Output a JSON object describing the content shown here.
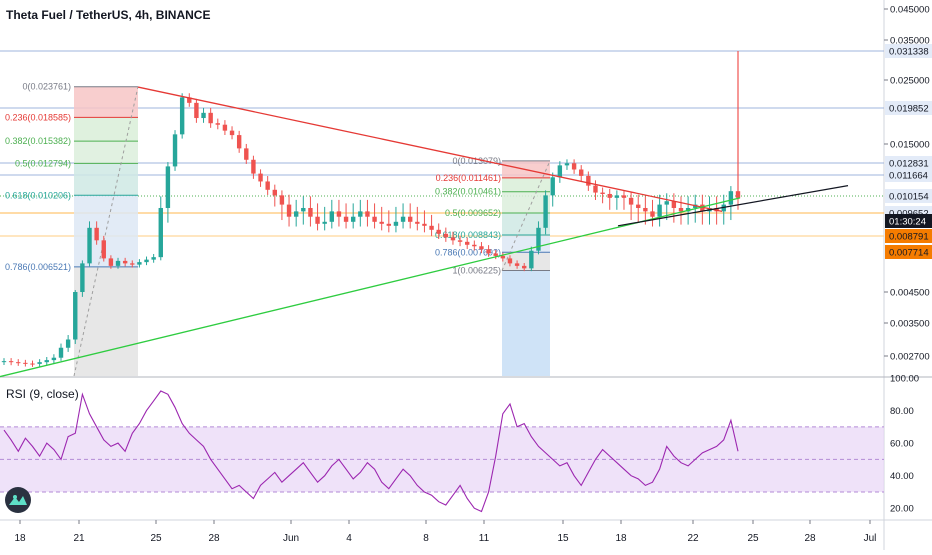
{
  "header": {
    "title": "Theta Fuel / TetherUS, 4h, BINANCE"
  },
  "colors": {
    "up": "#26a69a",
    "down": "#ef5350",
    "green_line": "#2ecc40",
    "red_line": "#e53935",
    "rsi_line": "#9c27b0",
    "rsi_band": "#e8d5f7",
    "fib_blue": "#4a79b5",
    "fib_green": "#4caf50",
    "fib_red": "#e53935",
    "price_tag_dark": "#131722",
    "price_tag_orange": "#f57c00"
  },
  "chart_data": [
    {
      "type": "line",
      "panel": "price",
      "x_ticks": [
        "18",
        "21",
        "25",
        "28",
        "Jun",
        "4",
        "8",
        "11",
        "15",
        "18",
        "22",
        "25",
        "28",
        "Jul"
      ],
      "y_ticks": [
        "0.045000",
        "0.035000",
        "0.025000",
        "0.015000",
        "0.004500",
        "0.003500",
        "0.002700"
      ],
      "y_tick_values": [
        0.045,
        0.035,
        0.025,
        0.015,
        0.0045,
        0.0035,
        0.0027
      ],
      "price_tags": [
        {
          "label": "0.031338",
          "value": 0.031338,
          "style": "light"
        },
        {
          "label": "0.019852",
          "value": 0.019852,
          "style": "light"
        },
        {
          "label": "0.012831",
          "value": 0.012831,
          "style": "light"
        },
        {
          "label": "0.011664",
          "value": 0.011664,
          "style": "light"
        },
        {
          "label": "0.010154",
          "value": 0.010154,
          "style": "light"
        },
        {
          "label": "0.009652",
          "value": 0.009652,
          "style": "light"
        },
        {
          "label": "0.009540",
          "value": 0.00954,
          "style": "dark",
          "text": "01:30:24"
        },
        {
          "label": "0.008791",
          "value": 0.008791,
          "style": "orange"
        },
        {
          "label": "0.007714",
          "value": 0.007714,
          "style": "orange"
        }
      ],
      "fib_left": [
        {
          "label": "0(0.023761)",
          "value": 0.023761,
          "color": "#787b86"
        },
        {
          "label": "0.236(0.018585)",
          "value": 0.018585,
          "color": "#e53935"
        },
        {
          "label": "0.382(0.015382)",
          "value": 0.015382,
          "color": "#4caf50"
        },
        {
          "label": "0.5(0.012794)",
          "value": 0.012794,
          "color": "#4caf50"
        },
        {
          "label": "0.618(0.010206)",
          "value": 0.010206,
          "color": "#26a69a"
        },
        {
          "label": "0.786(0.006521)",
          "value": 0.006521,
          "color": "#4a79b5"
        }
      ],
      "fib_right": [
        {
          "label": "0(0.013079)",
          "value": 0.013079,
          "color": "#787b86"
        },
        {
          "label": "0.236(0.011461)",
          "value": 0.011461,
          "color": "#e53935"
        },
        {
          "label": "0.382(0.010461)",
          "value": 0.010461,
          "color": "#4caf50"
        },
        {
          "label": "0.5(0.009652)",
          "value": 0.009652,
          "color": "#4caf50"
        },
        {
          "label": "0.618(0.008843)",
          "value": 0.008843,
          "color": "#26a69a"
        },
        {
          "label": "0.786(0.007692)",
          "value": 0.007692,
          "color": "#4a79b5"
        },
        {
          "label": "1(0.006225)",
          "value": 0.006225,
          "color": "#787b86"
        }
      ],
      "close_series": [
        0.00255,
        0.00252,
        0.0025,
        0.00248,
        0.00247,
        0.00252,
        0.00258,
        0.00265,
        0.0029,
        0.0031,
        0.0045,
        0.0068,
        0.0092,
        0.0085,
        0.0072,
        0.0066,
        0.007,
        0.0068,
        0.0067,
        0.0069,
        0.0071,
        0.0073,
        0.0098,
        0.0125,
        0.0163,
        0.0218,
        0.0208,
        0.0185,
        0.0192,
        0.0178,
        0.0176,
        0.0168,
        0.0162,
        0.0145,
        0.0132,
        0.0118,
        0.0112,
        0.0106,
        0.0102,
        0.0099,
        0.0096,
        0.0097,
        0.0098,
        0.0096,
        0.0094,
        0.0095,
        0.0097,
        0.0096,
        0.0095,
        0.0096,
        0.0097,
        0.0096,
        0.0095,
        0.0094,
        0.0093,
        0.0095,
        0.0096,
        0.0095,
        0.0094,
        0.0093,
        0.0091,
        0.0089,
        0.0087,
        0.0085,
        0.0084,
        0.0082,
        0.0081,
        0.0079,
        0.0076,
        0.0074,
        0.0072,
        0.0068,
        0.0066,
        0.0064,
        0.0078,
        0.0092,
        0.0102,
        0.0115,
        0.0126,
        0.0128,
        0.0122,
        0.0116,
        0.0109,
        0.0104,
        0.0103,
        0.0101,
        0.0102,
        0.0101,
        0.0099,
        0.0098,
        0.0097,
        0.0096,
        0.0099,
        0.01,
        0.0098,
        0.0097,
        0.0098,
        0.0099,
        0.0097,
        0.0098,
        0.0097,
        0.0099,
        0.0105,
        0.0101
      ],
      "trendlines": [
        {
          "name": "",
          "from_value": 0.0237,
          "to_value": 0.0097,
          "color": "#e53935"
        },
        {
          "name": "",
          "from_value": 0.0021,
          "to_value": 0.0101,
          "color": "#2ecc40"
        },
        {
          "name": "",
          "from_value": 0.0093,
          "to_value": 0.0109,
          "color": "#131722"
        }
      ]
    },
    {
      "type": "line",
      "panel": "rsi",
      "title": "RSI (9, close)",
      "y_ticks": [
        "100.00",
        "80.00",
        "60.00",
        "40.00",
        "20.00"
      ],
      "y_tick_values": [
        100,
        80,
        60,
        40,
        20
      ],
      "ylim": [
        14,
        100
      ],
      "band": [
        30,
        70
      ],
      "values": [
        68,
        62,
        55,
        63,
        58,
        52,
        60,
        56,
        50,
        64,
        66,
        90,
        78,
        70,
        62,
        58,
        60,
        55,
        66,
        72,
        80,
        86,
        92,
        90,
        82,
        72,
        66,
        62,
        58,
        50,
        44,
        38,
        32,
        34,
        30,
        26,
        34,
        38,
        42,
        36,
        40,
        44,
        48,
        42,
        36,
        40,
        46,
        50,
        44,
        38,
        42,
        48,
        44,
        36,
        32,
        38,
        44,
        40,
        34,
        30,
        28,
        24,
        22,
        28,
        34,
        26,
        20,
        18,
        30,
        52,
        78,
        84,
        70,
        72,
        64,
        58,
        54,
        50,
        46,
        48,
        40,
        34,
        42,
        50,
        56,
        52,
        48,
        44,
        40,
        38,
        34,
        36,
        44,
        58,
        52,
        48,
        46,
        50,
        54,
        56,
        58,
        62,
        74,
        55
      ]
    }
  ]
}
